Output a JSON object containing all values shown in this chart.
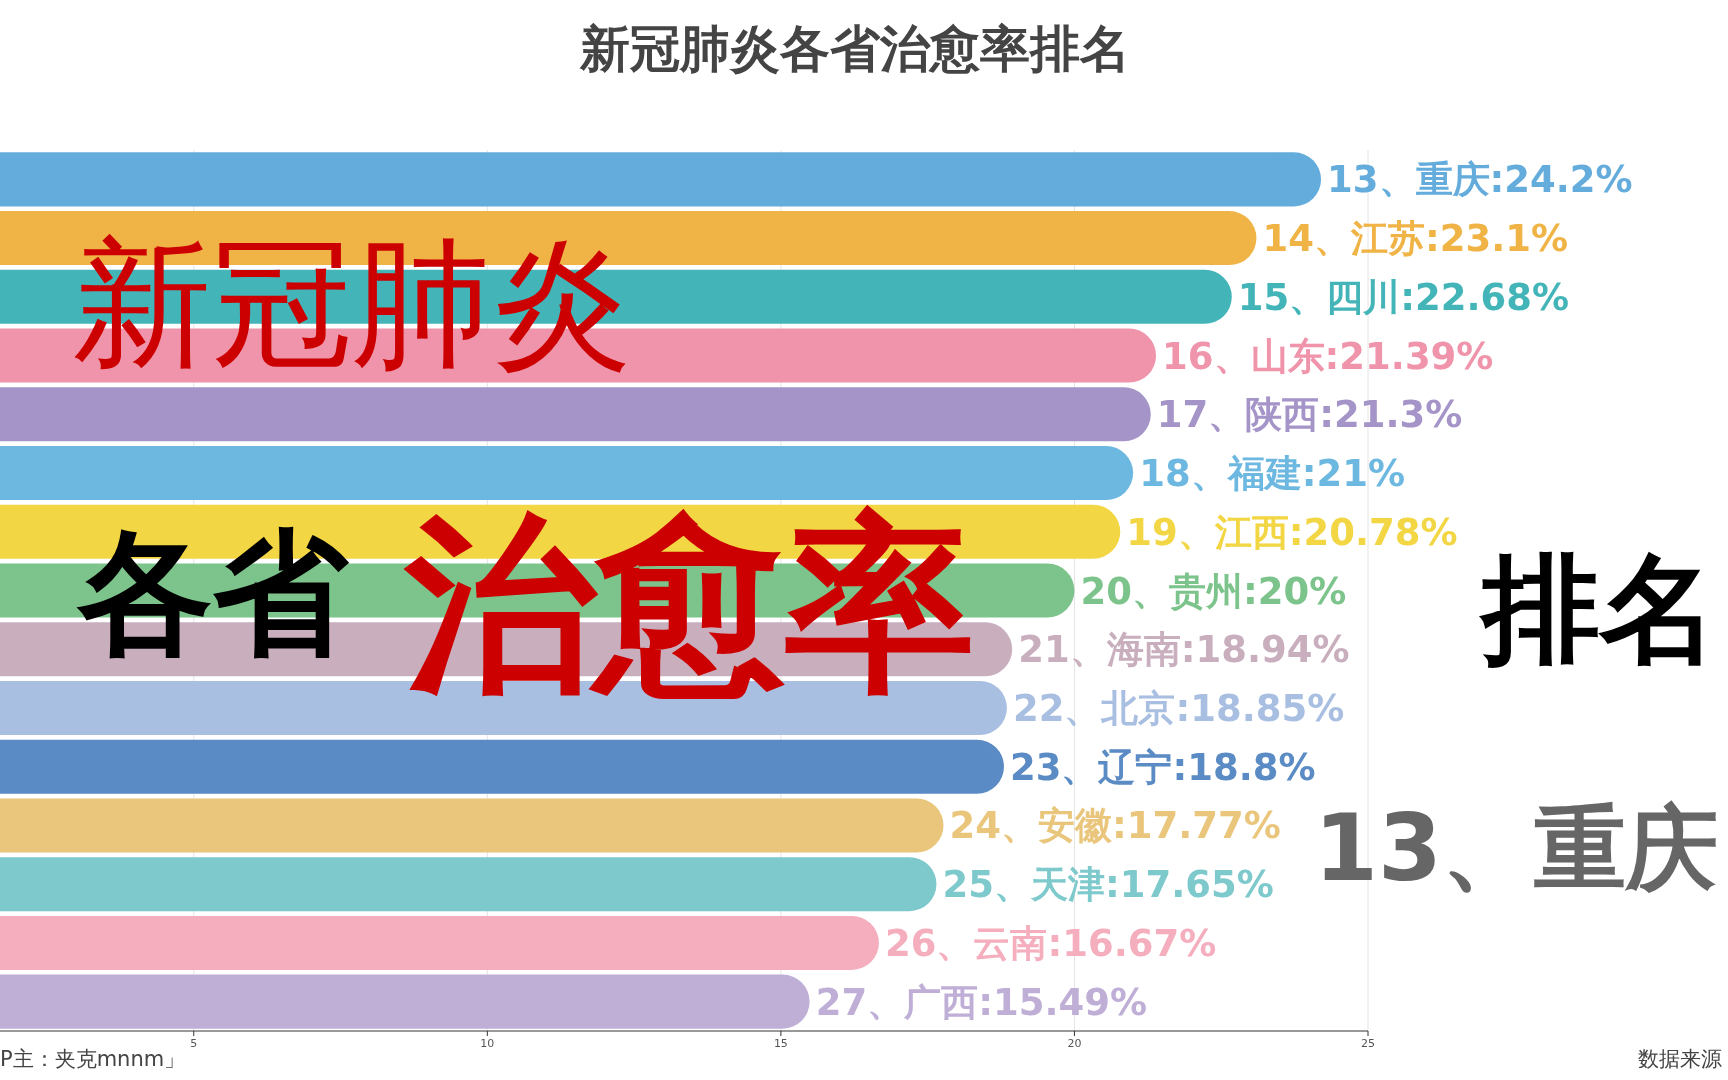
{
  "chart_data": {
    "type": "bar",
    "orientation": "horizontal",
    "title": "新冠肺炎各省治愈率排名",
    "categories": [
      null,
      null,
      null,
      null,
      null,
      null,
      null,
      null,
      null,
      null,
      null,
      null,
      null,
      null,
      null
    ],
    "values": [
      24.2,
      23.1,
      22.68,
      21.39,
      21.3,
      21,
      20.78,
      20,
      18.94,
      18.85,
      18.8,
      17.77,
      17.65,
      16.67,
      15.49
    ],
    "value_labels": [
      "13、重庆:24.2%",
      "14、江苏:23.1%",
      "15、四川:22.68%",
      "16、山东:21.39%",
      "17、陕西:21.3%",
      "18、福建:21%",
      "19、江西:20.78%",
      "20、贵州:20%",
      "21、海南:18.94%",
      "22、北京:18.85%",
      "23、辽宁:18.8%",
      "24、安徽:17.77%",
      "25、天津:17.65%",
      "26、云南:16.67%",
      "27、广西:15.49%"
    ],
    "colors": [
      "#64acdc",
      "#f0b446",
      "#43b5b8",
      "#ef94aa",
      "#a594c8",
      "#6cb8e0",
      "#f2d643",
      "#7cc48b",
      "#c9afbe",
      "#a9bfe2",
      "#5b8bc4",
      "#eac67c",
      "#7ec9cc",
      "#f5aebd",
      "#bfaed6"
    ],
    "xlim": [
      1.7,
      25
    ],
    "xticks": [
      5,
      10,
      15,
      20,
      25
    ],
    "grid": "x",
    "annotations": [
      "新冠肺炎",
      "各省",
      "治愈率",
      "排名",
      "13、重庆",
      "P主：夹克mnnm」",
      "数据来源"
    ]
  }
}
